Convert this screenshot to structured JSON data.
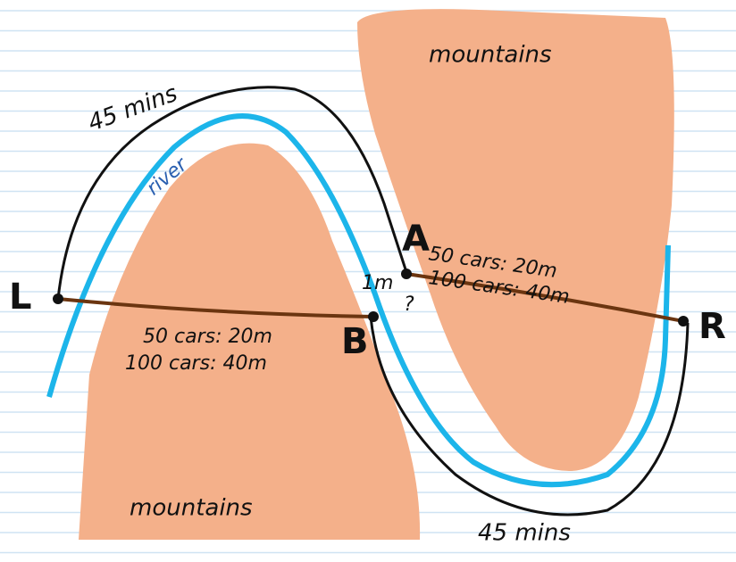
{
  "labels": {
    "mountains_top": "mountains",
    "mountains_bottom": "mountains",
    "time_top": "45 mins",
    "time_bottom": "45 mins",
    "river": "river",
    "left_point": "L",
    "right_point": "R",
    "point_a": "A",
    "point_b": "B",
    "bridge_a_line1": "50 cars: 20m",
    "bridge_a_line2": "100 cars: 40m",
    "bridge_b_line1": "50 cars: 20m",
    "bridge_b_line2": "100 cars: 40m",
    "gap_distance": "1m",
    "gap_unknown": "?"
  }
}
